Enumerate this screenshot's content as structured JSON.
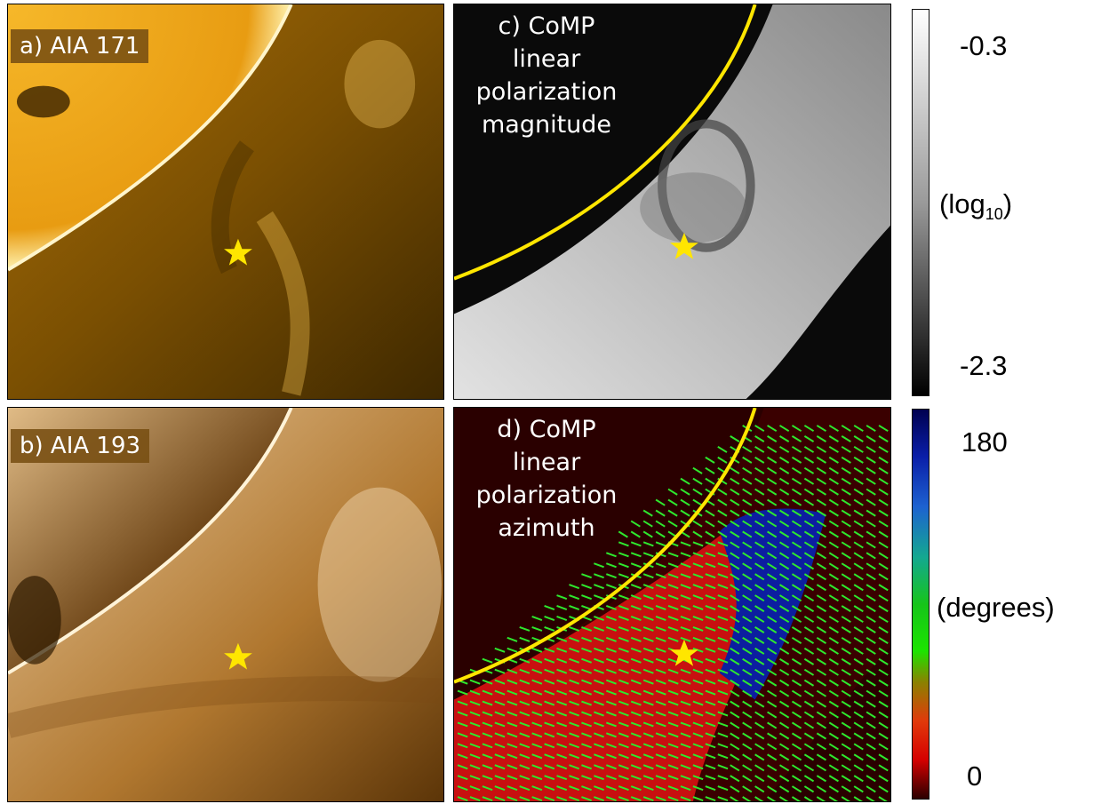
{
  "panels": {
    "a": {
      "label": "a) AIA 171"
    },
    "b": {
      "label": "b) AIA 193"
    },
    "c": {
      "title_lines": [
        "c) CoMP",
        "linear",
        "polarization",
        "magnitude"
      ]
    },
    "d": {
      "title_lines": [
        "d) CoMP",
        "linear",
        "polarization",
        "azimuth"
      ]
    }
  },
  "colorbars": {
    "magnitude": {
      "max_label": "-0.3",
      "unit_label": "(log10)",
      "min_label": "-2.3",
      "colors": [
        "#ffffff",
        "#000000"
      ]
    },
    "azimuth": {
      "max_label": "180",
      "unit_label": "(degrees)",
      "min_label": "0",
      "colors": [
        "#000050",
        "#0a1ea8",
        "#14a890",
        "#1ce400",
        "#e13a0b",
        "#2b0000"
      ]
    }
  },
  "colors": {
    "aia171": "#e8a312",
    "aia193": "#b37a38",
    "limb_line": "#ffe600",
    "star": "#ffe600",
    "vectors": "#2ee82e",
    "azimuth_red": "#c81010",
    "azimuth_blue": "#0c1ea0"
  },
  "icons": {
    "marker": "star-icon"
  }
}
